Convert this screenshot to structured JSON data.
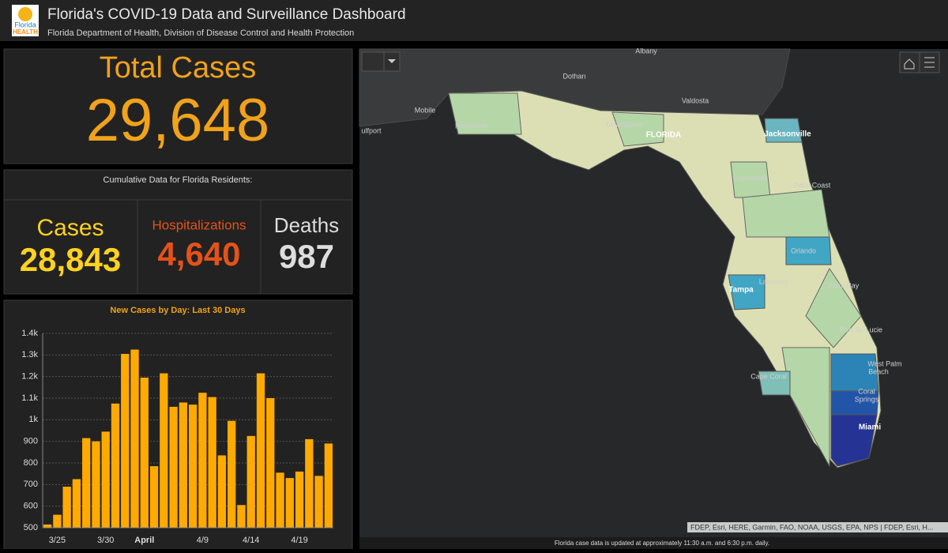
{
  "header": {
    "logo_top": "Florida",
    "logo_bottom": "HEALTH",
    "title": "Florida's COVID-19 Data and Surveillance Dashboard",
    "subtitle": "Florida Department of Health, Division of Disease Control and Health Protection"
  },
  "total": {
    "label": "Total Cases",
    "value": "29,648"
  },
  "cumulative": {
    "heading": "Cumulative Data for Florida Residents:",
    "items": [
      {
        "label": "Cases",
        "value": "28,843"
      },
      {
        "label": "Hospitalizations",
        "value": "4,640"
      },
      {
        "label": "Deaths",
        "value": "987"
      }
    ]
  },
  "chart_data": {
    "type": "bar",
    "title": "New Cases by Day: Last 30 Days",
    "categories": [
      null,
      "3/25",
      null,
      null,
      null,
      null,
      "3/30",
      null,
      null,
      null,
      "April",
      null,
      null,
      null,
      null,
      null,
      "4/9",
      null,
      null,
      null,
      null,
      "4/14",
      null,
      null,
      null,
      null,
      "4/19",
      null,
      null,
      null
    ],
    "values": [
      515,
      560,
      690,
      725,
      915,
      900,
      945,
      1075,
      1305,
      1325,
      1195,
      785,
      1215,
      1060,
      1080,
      1070,
      1125,
      1105,
      835,
      995,
      605,
      925,
      1215,
      1100,
      755,
      730,
      760,
      910,
      740,
      890
    ],
    "color": "#ffaa00",
    "ylim": [
      500,
      1400
    ],
    "yticks": [
      500,
      600,
      700,
      800,
      900,
      {
        "value": 1000,
        "label": "1k"
      },
      {
        "value": 1100,
        "label": "1.1k"
      },
      {
        "value": 1200,
        "label": "1.2k"
      },
      {
        "value": 1300,
        "label": "1.3k"
      },
      {
        "value": 1400,
        "label": "1.4k"
      }
    ],
    "grid": true
  },
  "map": {
    "labels": [
      "Albany",
      "Dothan",
      "Valdosta",
      "Mobile",
      "Pensacola",
      "Tallahassee",
      "FLORIDA",
      "Jacksonville",
      "Gainesville",
      "Palm Coast",
      "Orlando",
      "Lakeland",
      "Tampa",
      "Palm Bay",
      "Port St. Lucie",
      "West Palm",
      "Beach",
      "Cape Coral",
      "Coral",
      "Springs",
      "Miami",
      "ulfport"
    ],
    "attribution": "FDEP, Esri, HERE, Garmin, FAO, NOAA, USGS, EPA, NPS | FDEP, Esri, H...",
    "footer": "Florida case data is updated at approximately 11:30 a.m. and 6:30 p.m. daily."
  }
}
